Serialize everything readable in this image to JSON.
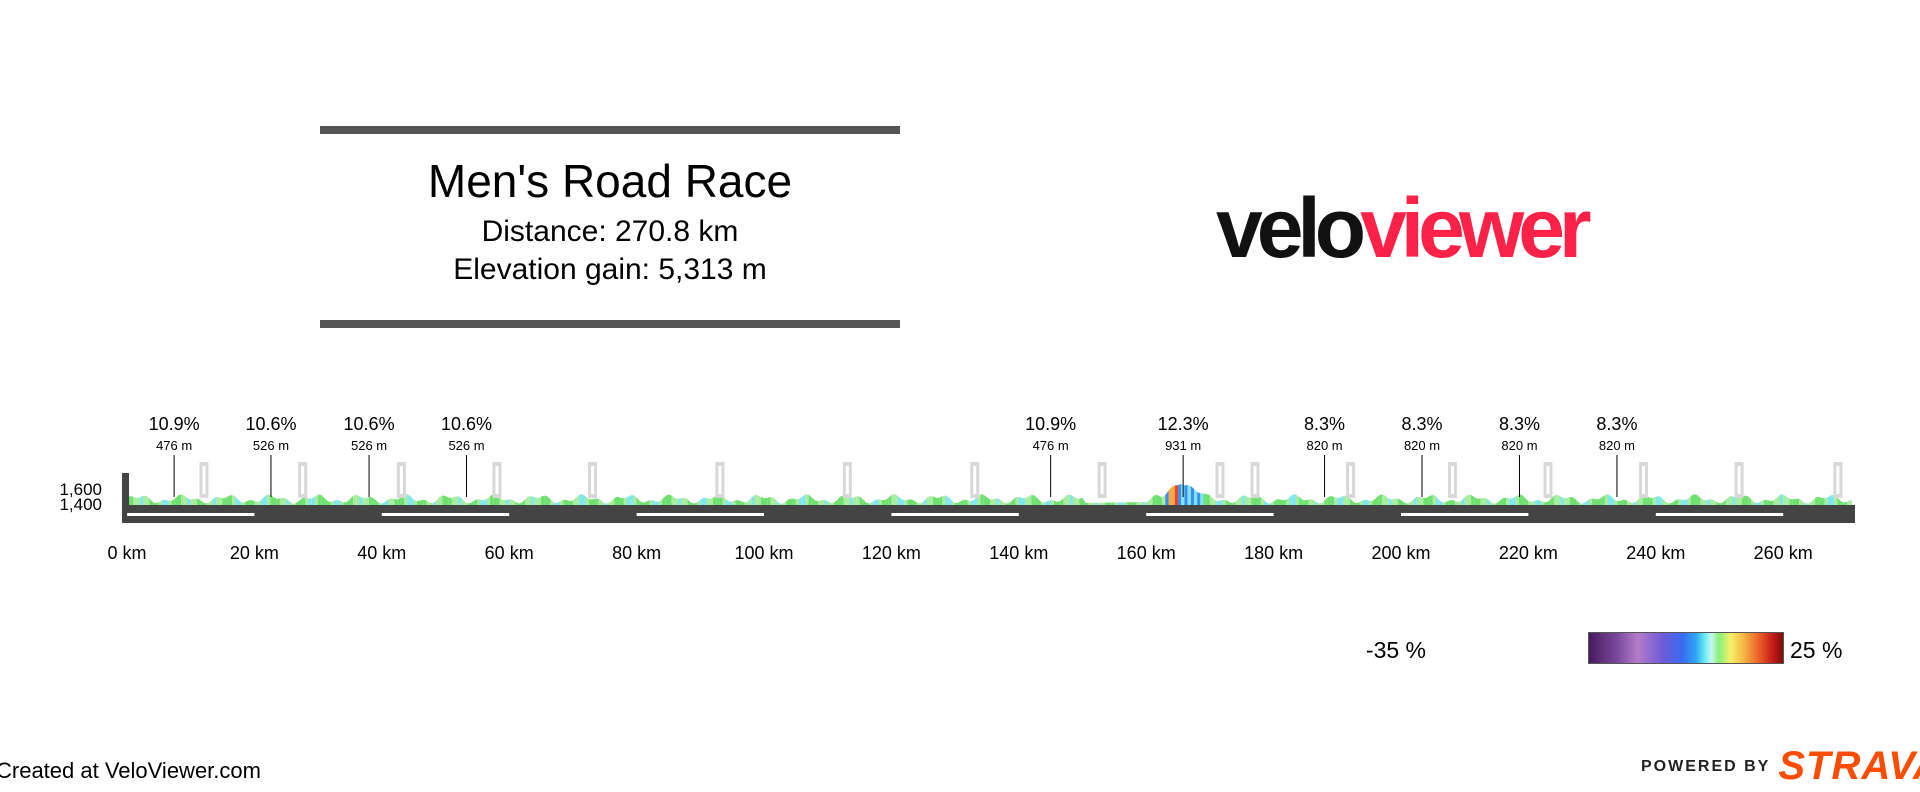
{
  "header": {
    "title": "Men's Road Race",
    "distance": "Distance: 270.8 km",
    "elevation": "Elevation gain: 5,313 m"
  },
  "logo": {
    "part1": "velo",
    "part2": "viewer"
  },
  "chart_data": {
    "type": "area",
    "title": "Men's Road Race",
    "xlabel": "",
    "ylabel": "",
    "xlim": [
      0,
      270.8
    ],
    "x_ticks": [
      0,
      20,
      40,
      60,
      80,
      100,
      120,
      140,
      160,
      180,
      200,
      220,
      240,
      260
    ],
    "x_tick_labels": [
      "0 km",
      "20 km",
      "40 km",
      "60 km",
      "80 km",
      "100 km",
      "120 km",
      "140 km",
      "160 km",
      "180 km",
      "200 km",
      "220 km",
      "240 km",
      "260 km"
    ],
    "y_tick_labels": [
      "1,600",
      "1,400"
    ],
    "y_ticks": [
      1600,
      1400
    ],
    "climbs": [
      {
        "km": 7.4,
        "gradient": "10.9%",
        "elevation": "476 m"
      },
      {
        "km": 22.6,
        "gradient": "10.6%",
        "elevation": "526 m"
      },
      {
        "km": 38.0,
        "gradient": "10.6%",
        "elevation": "526 m"
      },
      {
        "km": 53.3,
        "gradient": "10.6%",
        "elevation": "526 m"
      },
      {
        "km": 145.0,
        "gradient": "10.9%",
        "elevation": "476 m"
      },
      {
        "km": 165.8,
        "gradient": "12.3%",
        "elevation": "931 m"
      },
      {
        "km": 188.0,
        "gradient": "8.3%",
        "elevation": "820 m"
      },
      {
        "km": 203.3,
        "gradient": "8.3%",
        "elevation": "820 m"
      },
      {
        "km": 218.6,
        "gradient": "8.3%",
        "elevation": "820 m"
      },
      {
        "km": 233.9,
        "gradient": "8.3%",
        "elevation": "820 m"
      }
    ],
    "colors": {
      "flat_green": "#6ee06e",
      "light_green": "#a8eca0",
      "cyan": "#7fe6f0",
      "blue": "#3a8ef0",
      "orange": "#f5a742",
      "red": "#e8452a",
      "axis": "#444444"
    }
  },
  "legend": {
    "min": "-35 %",
    "max": "25 %"
  },
  "footer": {
    "created": "Created at VeloViewer.com",
    "powered": "POWERED BY",
    "strava": "STRAVA"
  }
}
